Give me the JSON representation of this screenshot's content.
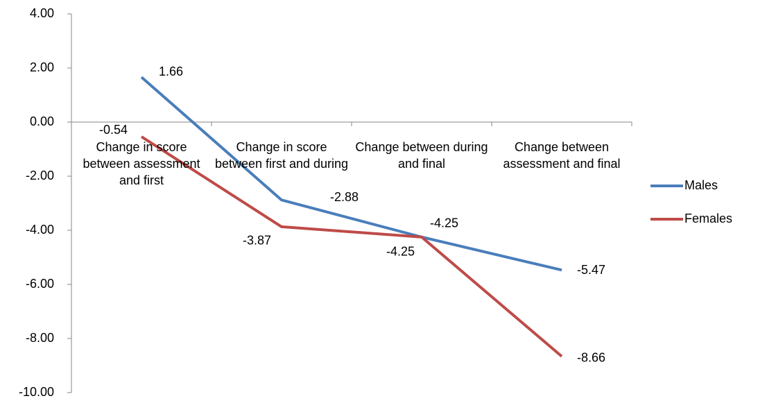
{
  "chart_data": {
    "type": "line",
    "categories": [
      "Change in score between assessment and first",
      "Change in score between first and during",
      "Change between during and final",
      "Change between assessment and final"
    ],
    "series": [
      {
        "name": "Males",
        "color": "#4a7ebb",
        "values": [
          1.66,
          -2.88,
          -4.25,
          -5.47
        ]
      },
      {
        "name": "Females",
        "color": "#be4b48",
        "values": [
          -0.54,
          -3.87,
          -4.25,
          -8.66
        ]
      }
    ],
    "ylim": [
      -10,
      4
    ],
    "yticks": [
      {
        "value": 4,
        "label": "4.00"
      },
      {
        "value": 2,
        "label": "2.00"
      },
      {
        "value": 0,
        "label": "0.00"
      },
      {
        "value": -2,
        "label": "-2.00"
      },
      {
        "value": -4,
        "label": "-4.00"
      },
      {
        "value": -6,
        "label": "-6.00"
      },
      {
        "value": -8,
        "label": "-8.00"
      },
      {
        "value": -10,
        "label": "-10.00"
      }
    ],
    "legend": "right"
  }
}
